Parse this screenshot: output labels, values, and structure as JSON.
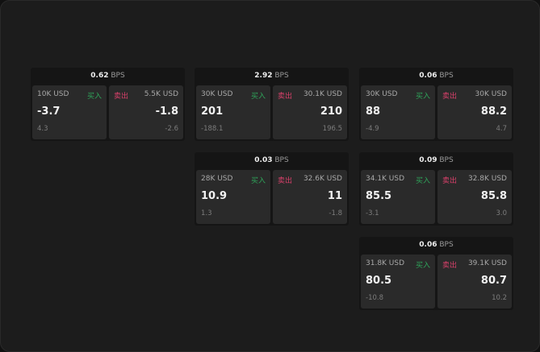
{
  "colors": {
    "buy": "#2fa55a",
    "sell": "#d8406a"
  },
  "labels": {
    "buy": "买入",
    "sell": "卖出",
    "unit": "BPS"
  },
  "panels": [
    {
      "spread": "0.62",
      "bid": {
        "size": "10K USD",
        "price": "-3.7",
        "change": "4.3"
      },
      "ask": {
        "size": "5.5K USD",
        "price": "-1.8",
        "change": "-2.6"
      }
    },
    {
      "spread": "2.92",
      "bid": {
        "size": "30K USD",
        "price": "201",
        "change": "-188.1"
      },
      "ask": {
        "size": "30.1K USD",
        "price": "210",
        "change": "196.5"
      }
    },
    {
      "spread": "0.06",
      "bid": {
        "size": "30K USD",
        "price": "88",
        "change": "-4.9"
      },
      "ask": {
        "size": "30K USD",
        "price": "88.2",
        "change": "4.7"
      }
    },
    {
      "spread": "0.03",
      "bid": {
        "size": "28K USD",
        "price": "10.9",
        "change": "1.3"
      },
      "ask": {
        "size": "32.6K USD",
        "price": "11",
        "change": "-1.8"
      }
    },
    {
      "spread": "0.09",
      "bid": {
        "size": "34.1K USD",
        "price": "85.5",
        "change": "-3.1"
      },
      "ask": {
        "size": "32.8K USD",
        "price": "85.8",
        "change": "3.0"
      }
    },
    {
      "spread": "0.06",
      "bid": {
        "size": "31.8K USD",
        "price": "80.5",
        "change": "-10.8"
      },
      "ask": {
        "size": "39.1K USD",
        "price": "80.7",
        "change": "10.2"
      }
    }
  ]
}
